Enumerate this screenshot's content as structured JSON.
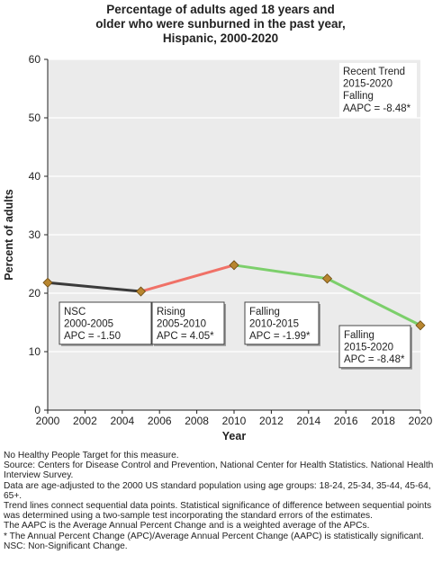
{
  "chart_data": {
    "type": "line",
    "title_lines": [
      "Percentage of adults aged 18 years and",
      "older who were sunburned in the past year,",
      "Hispanic,  2000-2020"
    ],
    "xlabel": "Year",
    "ylabel": "Percent of adults",
    "xlim": [
      2000,
      2020
    ],
    "ylim": [
      0,
      60
    ],
    "x_ticks": [
      "2000",
      "2002",
      "2004",
      "2006",
      "2008",
      "2010",
      "2012",
      "2014",
      "2016",
      "2018",
      "2020"
    ],
    "y_ticks": [
      "0",
      "10",
      "20",
      "30",
      "40",
      "50",
      "60"
    ],
    "grid": "horizontal",
    "points": [
      {
        "x": 2000,
        "y": 21.8
      },
      {
        "x": 2005,
        "y": 20.3
      },
      {
        "x": 2010,
        "y": 24.8
      },
      {
        "x": 2015,
        "y": 22.5
      },
      {
        "x": 2020,
        "y": 14.5
      }
    ],
    "segments": [
      {
        "from": 0,
        "to": 1,
        "trend": "NSC",
        "color": "#3a3a3a"
      },
      {
        "from": 1,
        "to": 2,
        "trend": "Rising",
        "color": "#f07167"
      },
      {
        "from": 2,
        "to": 3,
        "trend": "Falling",
        "color": "#7ccf6b"
      },
      {
        "from": 3,
        "to": 4,
        "trend": "Falling",
        "color": "#7ccf6b"
      }
    ],
    "marker_color": "#b8862f",
    "annotations": [
      {
        "lines": [
          "NSC",
          "2000-2005",
          "APC = -1.50"
        ]
      },
      {
        "lines": [
          "Rising",
          "2005-2010",
          "APC =  4.05*"
        ]
      },
      {
        "lines": [
          "Falling",
          "2010-2015",
          "APC = -1.99*"
        ]
      },
      {
        "lines": [
          "Falling",
          "2015-2020",
          "APC = -8.48*"
        ]
      }
    ],
    "recent_trend": {
      "lines": [
        "Recent Trend",
        "2015-2020",
        "Falling",
        "AAPC = -8.48*"
      ]
    }
  },
  "footnotes": [
    "No Healthy People Target for this measure.",
    "Source: Centers for Disease Control and Prevention, National Center for Health Statistics. National Health Interview Survey.",
    "Data are age-adjusted to the 2000 US standard population using age groups: 18-24, 25-34, 35-44, 45-64, 65+.",
    "Trend lines connect sequential data points. Statistical significance of difference between sequential points was determined using a two-sample test incorporating the standard errors of the estimates.",
    "The AAPC is the Average Annual Percent Change and is a weighted average of the APCs.",
    "* The Annual Percent Change (APC)/Average Annual Percent Change (AAPC) is statistically significant.",
    "NSC: Non-Significant Change."
  ]
}
